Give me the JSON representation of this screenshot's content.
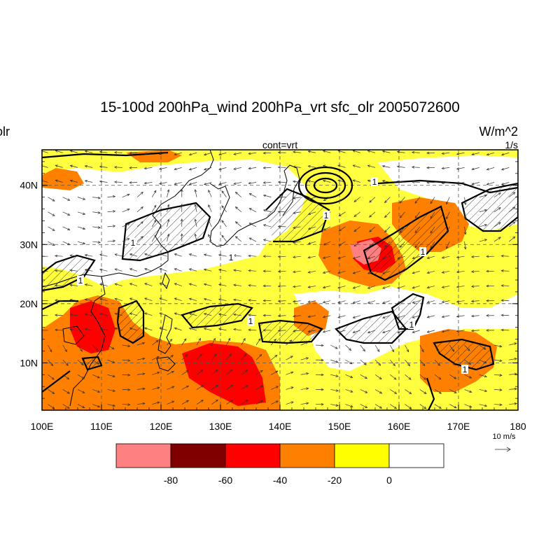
{
  "chart_data": {
    "type": "map",
    "title": "15-100d 200hPa_wind 200hPa_vrt sfc_olr 2005072600",
    "left_string": "olr",
    "right_string": "W/m^2",
    "center_sub": "cont=vrt",
    "right_sub": "1/s",
    "lon_range": [
      100,
      180
    ],
    "lat_range": [
      2,
      46
    ],
    "x_ticks": [
      {
        "value": 100,
        "label": "100E"
      },
      {
        "value": 110,
        "label": "110E"
      },
      {
        "value": 120,
        "label": "120E"
      },
      {
        "value": 130,
        "label": "130E"
      },
      {
        "value": 140,
        "label": "140E"
      },
      {
        "value": 150,
        "label": "150E"
      },
      {
        "value": 160,
        "label": "160E"
      },
      {
        "value": 170,
        "label": "170E"
      },
      {
        "value": 180,
        "label": "180"
      }
    ],
    "y_ticks": [
      {
        "value": 10,
        "label": "10N"
      },
      {
        "value": 20,
        "label": "20N"
      },
      {
        "value": 30,
        "label": "30N"
      },
      {
        "value": 40,
        "label": "40N"
      }
    ],
    "grid": "dashed",
    "colorbar": {
      "colors": [
        "#ff8080",
        "#800000",
        "#ff0000",
        "#ff8000",
        "#ffff00",
        "#ffffff"
      ],
      "labels": [
        "-80",
        "-60",
        "-40",
        "-20",
        "0"
      ]
    },
    "vector_reference": {
      "label": "10 m/s"
    },
    "contour_labels": [
      "1",
      "1",
      "1",
      "1",
      "1",
      "1",
      "1",
      "1",
      "1"
    ]
  }
}
